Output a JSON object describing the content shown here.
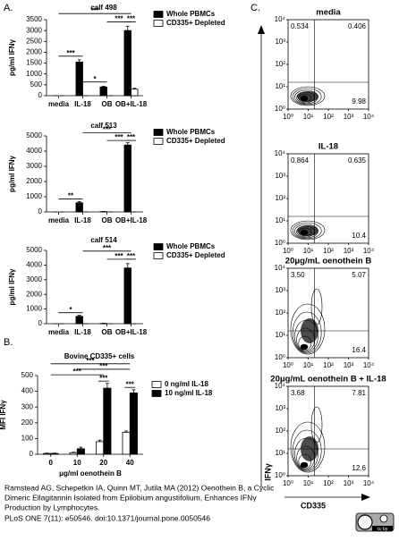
{
  "panel_labels": [
    "A.",
    "B.",
    "C."
  ],
  "chart_data": [
    {
      "type": "bar",
      "title": "calf 498",
      "ylabel": "pg/ml IFNγ",
      "categories": [
        "media",
        "IL-18",
        "OB",
        "OB+IL-18"
      ],
      "ylim": [
        0,
        3500
      ],
      "yticks": [
        0,
        500,
        1000,
        1500,
        2000,
        2500,
        3000,
        3500
      ],
      "series": [
        {
          "name": "Whole PBMCs",
          "color": "#000000",
          "values": [
            0,
            1550,
            400,
            3000
          ],
          "errors": [
            0,
            100,
            30,
            200
          ]
        },
        {
          "name": "CD335+ Depleted",
          "color": "#ffffff",
          "values": [
            0,
            0,
            0,
            300
          ],
          "errors": [
            0,
            0,
            0,
            40
          ]
        }
      ],
      "annotations": [
        "***",
        "***",
        "***",
        "***",
        "*"
      ]
    },
    {
      "type": "bar",
      "title": "calf 513",
      "ylabel": "pg/ml IFNγ",
      "categories": [
        "media",
        "IL-18",
        "OB",
        "OB+IL-18"
      ],
      "ylim": [
        0,
        5000
      ],
      "yticks": [
        0,
        1000,
        2000,
        3000,
        4000,
        5000
      ],
      "series": [
        {
          "name": "Whole PBMCs",
          "color": "#000000",
          "values": [
            0,
            600,
            20,
            4400
          ],
          "errors": [
            0,
            80,
            5,
            150
          ]
        },
        {
          "name": "CD335+ Depleted",
          "color": "#ffffff",
          "values": [
            0,
            0,
            0,
            0
          ],
          "errors": [
            0,
            0,
            0,
            0
          ]
        }
      ],
      "annotations": [
        "***",
        "***",
        "***",
        "**"
      ]
    },
    {
      "type": "bar",
      "title": "calf 514",
      "ylabel": "pg/ml IFNγ",
      "categories": [
        "media",
        "IL-18",
        "OB",
        "OB+IL-18"
      ],
      "ylim": [
        0,
        5000
      ],
      "yticks": [
        0,
        1000,
        2000,
        3000,
        4000,
        5000
      ],
      "series": [
        {
          "name": "Whole PBMCs",
          "color": "#000000",
          "values": [
            0,
            500,
            20,
            3800
          ],
          "errors": [
            0,
            70,
            5,
            300
          ]
        },
        {
          "name": "CD335+ Depleted",
          "color": "#ffffff",
          "values": [
            0,
            0,
            0,
            0
          ],
          "errors": [
            0,
            0,
            0,
            0
          ]
        }
      ],
      "annotations": [
        "***",
        "***",
        "***",
        "*"
      ]
    },
    {
      "type": "bar",
      "title": "Bovine CD335+ cells",
      "ylabel": "MFI IFNγ",
      "xlabel": "μg/ml oenothein B",
      "categories": [
        "0",
        "10",
        "20",
        "40"
      ],
      "ylim": [
        0,
        500
      ],
      "yticks": [
        0,
        100,
        200,
        300,
        400,
        500
      ],
      "series": [
        {
          "name": "0 ng/ml IL-18",
          "color": "#ffffff",
          "values": [
            5,
            10,
            80,
            140
          ],
          "errors": [
            2,
            3,
            10,
            8
          ]
        },
        {
          "name": "10 ng/ml IL-18",
          "color": "#000000",
          "values": [
            5,
            35,
            420,
            390
          ],
          "errors": [
            2,
            10,
            30,
            20
          ]
        }
      ],
      "annotations": [
        "***",
        "***",
        "***",
        "***",
        "***"
      ]
    }
  ],
  "flow_plots": {
    "axis_ticks": [
      "10⁰",
      "10¹",
      "10²",
      "10³",
      "10⁴"
    ],
    "ylabel": "IFNγ",
    "xlabel": "CD335",
    "plots": [
      {
        "title": "media",
        "quadrants": [
          "0.534",
          "0.406",
          "9.98"
        ]
      },
      {
        "title": "IL-18",
        "quadrants": [
          "0.864",
          "0.635",
          "10.4"
        ]
      },
      {
        "title": "20μg/mL oenothein B",
        "quadrants": [
          "3.50",
          "5.07",
          "16.4"
        ]
      },
      {
        "title": "20μg/mL oenothein B + IL-18",
        "quadrants": [
          "3.68",
          "7.81",
          "12.6"
        ]
      }
    ]
  },
  "citation": [
    "Ramstead AG, Schepetkin IA, Quinn MT, Jutila MA (2012) Oenothein B, a Cyclic",
    "Dimeric Ellagitannin Isolated from Epilobium angustifolium, Enhances IFNγ",
    "Production by Lymphocytes.",
    "PLoS ONE 7(11): e50546. doi:10.1371/journal.pone.0050546"
  ],
  "license": "cc by"
}
